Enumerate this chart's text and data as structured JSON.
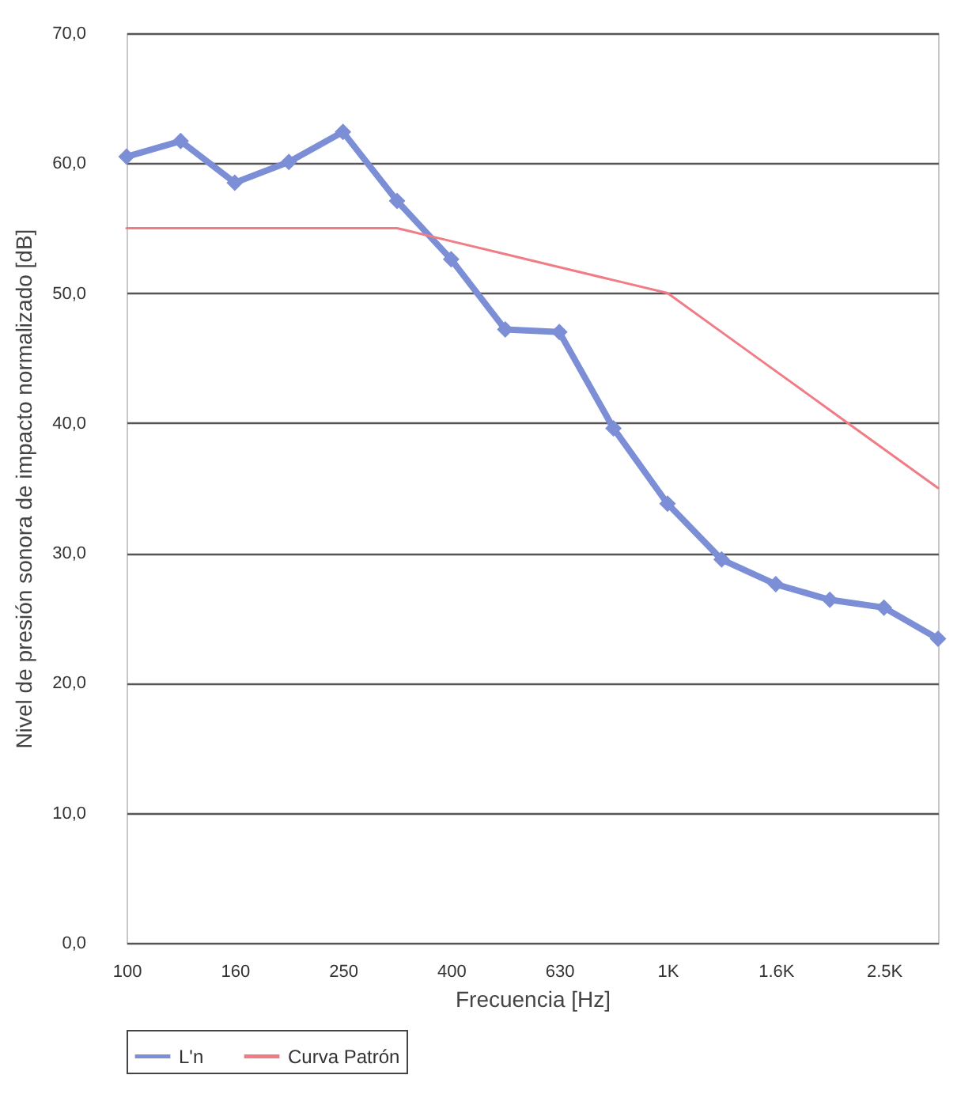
{
  "chart_data": {
    "type": "line",
    "xlabel": "Frecuencia [Hz]",
    "ylabel": "Nivel de presión sonora de impacto normalizado [dB]",
    "categories": [
      "100",
      null,
      "160",
      null,
      "250",
      null,
      "400",
      null,
      "630",
      null,
      "1K",
      null,
      "1.6K",
      null,
      "2.5K",
      null
    ],
    "series": [
      {
        "name": "L'n",
        "color": "#7b8ed6",
        "marker": "diamond",
        "values": [
          60.5,
          61.7,
          58.5,
          60.1,
          62.4,
          57.1,
          52.6,
          47.2,
          47.0,
          39.6,
          33.8,
          29.5,
          27.6,
          26.4,
          25.8,
          23.4
        ]
      },
      {
        "name": "Curva Patrón",
        "color": "#f07c86",
        "marker": "none",
        "values": [
          55,
          55,
          55,
          55,
          55,
          55,
          54,
          53,
          52,
          51,
          50,
          47,
          44,
          41,
          38,
          35
        ]
      }
    ],
    "ylim": [
      0,
      70
    ],
    "yticks": [
      {
        "value": 0,
        "label": "0,0"
      },
      {
        "value": 10,
        "label": "10,0"
      },
      {
        "value": 20,
        "label": "20,0"
      },
      {
        "value": 30,
        "label": "30,0"
      },
      {
        "value": 40,
        "label": "40,0"
      },
      {
        "value": 50,
        "label": "50,0"
      },
      {
        "value": 60,
        "label": "60,0"
      },
      {
        "value": 70,
        "label": "70,0"
      }
    ],
    "grid": "y",
    "legend": "bottom"
  }
}
